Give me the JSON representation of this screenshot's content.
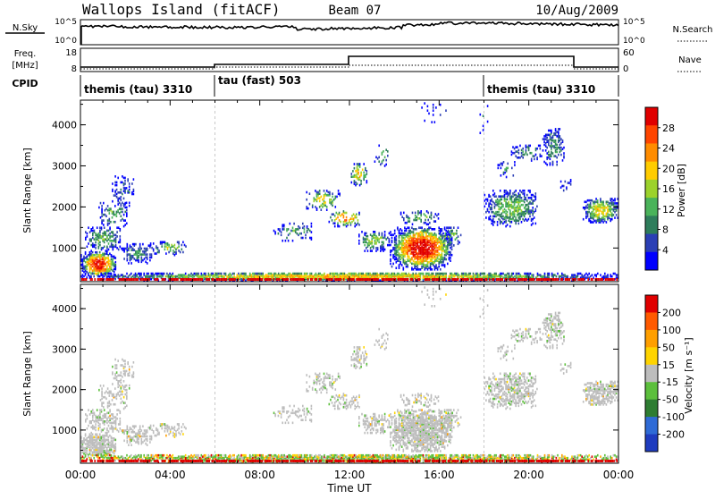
{
  "header": {
    "station": "Wallops Island (fitACF)",
    "beam": "Beam 07",
    "date": "10/Aug/2009"
  },
  "panels": {
    "nsky_label": "N.Sky",
    "nsky_ticks": [
      "10^5",
      "10^0"
    ],
    "nsearch_label": "N.Search",
    "nsearch_ticks": [
      "10^5",
      "10^0"
    ],
    "freq_label": "Freq.",
    "freq_unit": "[MHz]",
    "freq_ticks": [
      "18",
      "8"
    ],
    "nave_label": "Nave",
    "nave_ticks": [
      "60",
      "0"
    ],
    "cpid_label": "CPID",
    "cpid_segments": [
      {
        "label": "themis (tau) 3310",
        "start_hour": 0
      },
      {
        "label": "tau (fast) 503",
        "start_hour": 6
      },
      {
        "label": "themis (tau) 3310",
        "start_hour": 18
      }
    ]
  },
  "colors": {
    "power": [
      "#0000ff",
      "#2b3fb5",
      "#2e7d5b",
      "#4ab35a",
      "#9cd22c",
      "#ffcc00",
      "#ff8c00",
      "#ff4500",
      "#e00000"
    ],
    "velocity": [
      "#1f3cbf",
      "#2f6bd6",
      "#2e7d32",
      "#5cbf3c",
      "#bdbdbd",
      "#ffd400",
      "#ff9f00",
      "#ff5a00",
      "#e00000"
    ]
  },
  "chart_data": [
    {
      "type": "heatmap",
      "ylabel": "Slant Range [km]",
      "ylim": [
        180,
        4600
      ],
      "yticks": [
        "4000",
        "3000",
        "2000",
        "1000"
      ],
      "xlim": [
        0,
        24
      ],
      "colorbar_label": "Power [dB]",
      "colorbar_ticks": [
        "28",
        "24",
        "20",
        "16",
        "12",
        "8",
        "4"
      ],
      "clim": [
        0,
        32
      ]
    },
    {
      "type": "heatmap",
      "ylabel": "Slant Range [km]",
      "ylim": [
        180,
        4600
      ],
      "yticks": [
        "4000",
        "3000",
        "2000",
        "1000"
      ],
      "xlim": [
        0,
        24
      ],
      "colorbar_label": "Velocity [m s⁻¹]",
      "colorbar_ticks": [
        "200",
        "100",
        "50",
        "15",
        "-15",
        "-50",
        "-100",
        "-200"
      ]
    }
  ],
  "xaxis": {
    "label": "Time UT",
    "ticks": [
      "00:00",
      "04:00",
      "08:00",
      "12:00",
      "16:00",
      "20:00",
      "00:00"
    ]
  }
}
